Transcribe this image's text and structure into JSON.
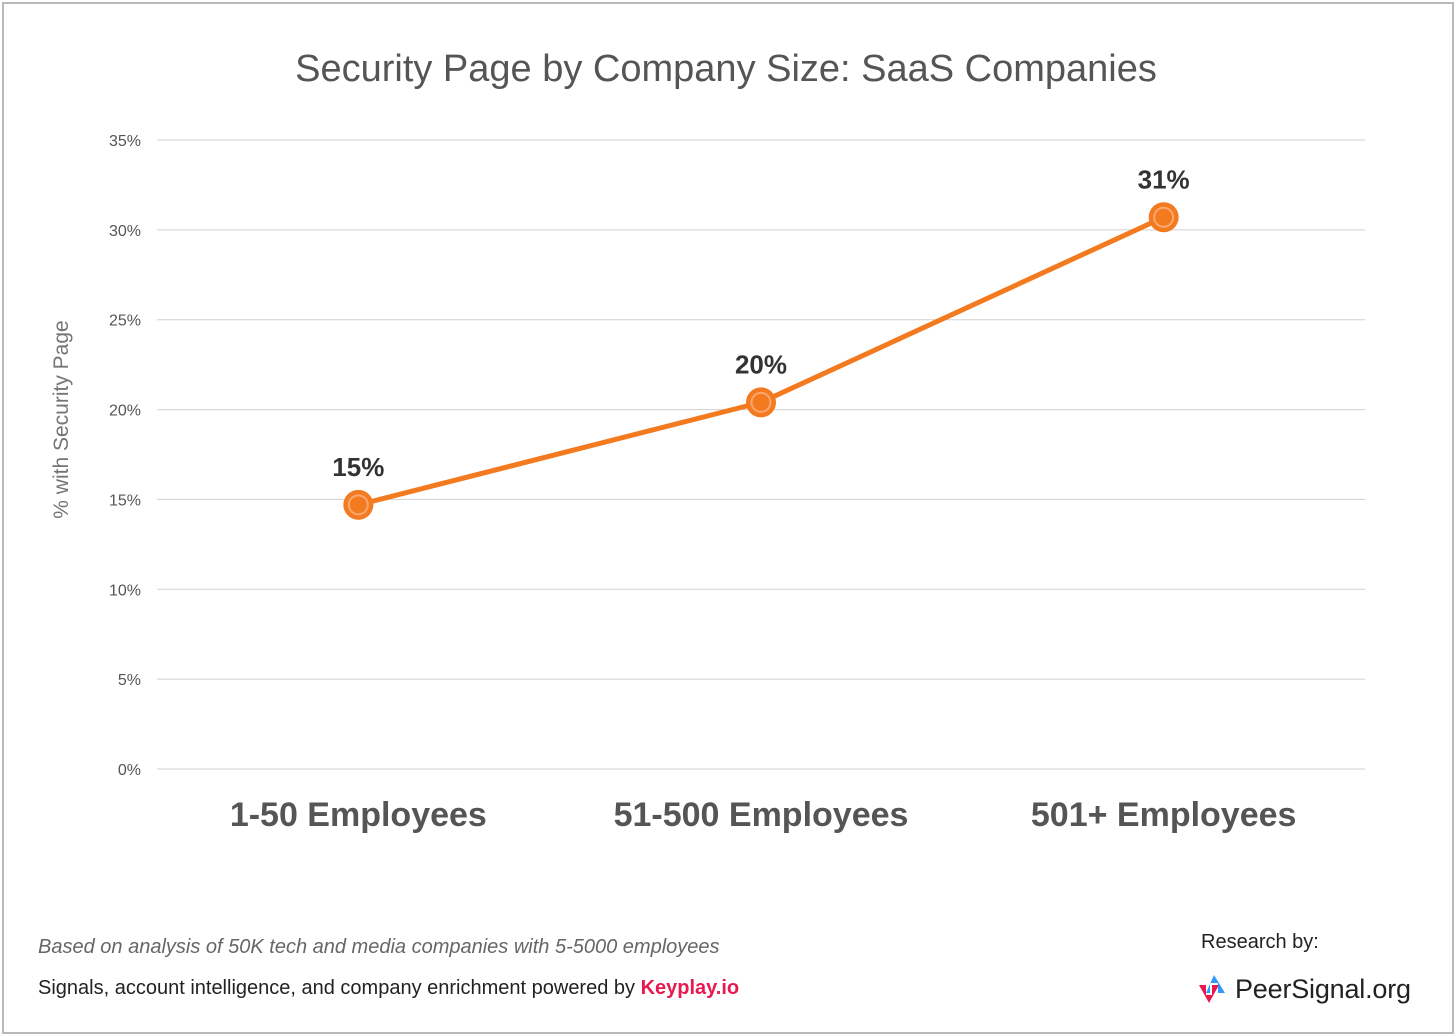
{
  "chart_data": {
    "type": "line",
    "title": "Security Page by Company Size: SaaS Companies",
    "ylabel": "% with Security Page",
    "xlabel": "",
    "categories": [
      "1-50 Employees",
      "51-500 Employees",
      "501+ Employees"
    ],
    "series": [
      {
        "values": [
          14.7,
          20.4,
          30.7
        ],
        "labels": [
          "15%",
          "20%",
          "31%"
        ],
        "color": "#f47a20"
      }
    ],
    "ylim": [
      0,
      35
    ],
    "yticks": [
      0,
      5,
      10,
      15,
      20,
      25,
      30,
      35
    ],
    "ytick_labels": [
      "0%",
      "5%",
      "10%",
      "15%",
      "20%",
      "25%",
      "30%",
      "35%"
    ],
    "grid": true,
    "legend": "none"
  },
  "footer": {
    "note": "Based on analysis of 50K tech and media companies with 5-5000 employees",
    "powered_text": "Signals, account intelligence, and company enrichment powered by ",
    "powered_brand": "Keyplay.io",
    "research_label": "Research by:",
    "logo_text": "PeerSignal.org"
  },
  "colors": {
    "line": "#f47a20",
    "grid": "#d0d0d0",
    "brand_accent": "#e8194f",
    "logo_blue": "#1e90ff"
  }
}
